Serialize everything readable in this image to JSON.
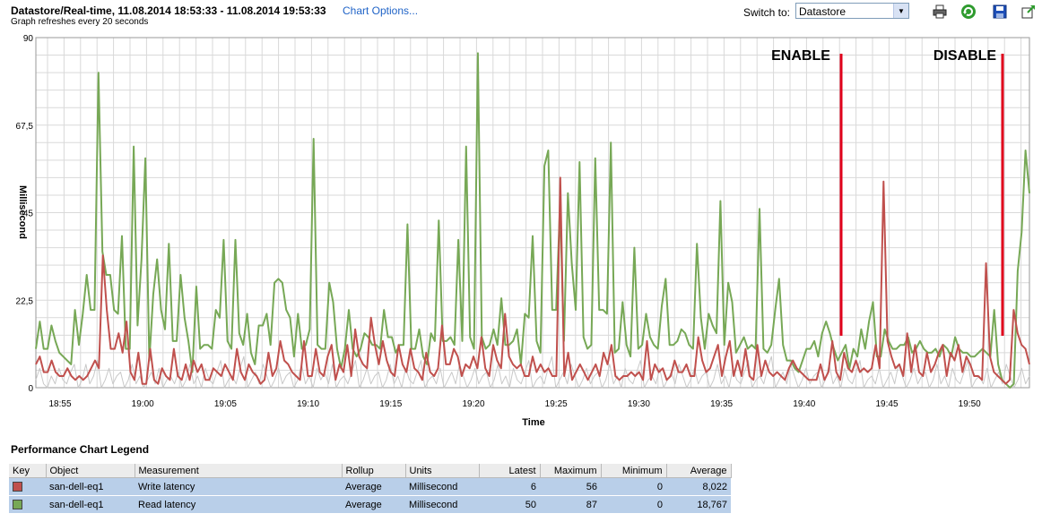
{
  "header": {
    "title": "Datastore/Real-time, 11.08.2014 18:53:33 - 11.08.2014 19:53:33",
    "chart_options_link": "Chart Options...",
    "refresh_note": "Graph refreshes every 20 seconds",
    "switch_label": "Switch to:",
    "switch_value": "Datastore"
  },
  "toolbar": {
    "icons": [
      "print-icon",
      "refresh-icon",
      "save-icon",
      "export-icon"
    ]
  },
  "colors": {
    "write_series": "#c0504d",
    "read_series": "#77a856",
    "other_series": "#c8c8c8",
    "annotation": "#e0001b"
  },
  "chart_data": {
    "type": "line",
    "ylabel": "Millisecond",
    "xlabel": "Time",
    "ylim": [
      0,
      90
    ],
    "yticks": [
      "0",
      "22,5",
      "45",
      "67,5",
      "90"
    ],
    "xticks": [
      "18:55",
      "19:00",
      "19:05",
      "19:10",
      "19:15",
      "19:20",
      "19:25",
      "19:30",
      "19:35",
      "19:40",
      "19:45",
      "19:50"
    ],
    "grid": true,
    "series": [
      {
        "name": "Read latency",
        "values": [
          10,
          17,
          10,
          10,
          16,
          12,
          9,
          8,
          7,
          6,
          20,
          11,
          19,
          29,
          20,
          20,
          81,
          35,
          29,
          29,
          20,
          19,
          39,
          10,
          10,
          62,
          16,
          33,
          59,
          7,
          24,
          33,
          20,
          15,
          37,
          12,
          12,
          29,
          18,
          12,
          4,
          26,
          10,
          11,
          11,
          10,
          20,
          18,
          38,
          12,
          10,
          38,
          14,
          11,
          19,
          9,
          6,
          16,
          16,
          19,
          11,
          27,
          28,
          27,
          20,
          18,
          8,
          19,
          10,
          11,
          15,
          64,
          11,
          10,
          10,
          27,
          22,
          10,
          5,
          10,
          20,
          10,
          8,
          10,
          14,
          13,
          11,
          11,
          10,
          20,
          13,
          13,
          9,
          11,
          11,
          42,
          10,
          10,
          15,
          8,
          6,
          14,
          12,
          43,
          12,
          12,
          13,
          11,
          38,
          12,
          62,
          13,
          10,
          86,
          13,
          10,
          11,
          15,
          11,
          23,
          11,
          11,
          12,
          15,
          6,
          19,
          18,
          39,
          12,
          9,
          57,
          61,
          20,
          20,
          47,
          12,
          50,
          32,
          20,
          58,
          13,
          10,
          11,
          59,
          20,
          20,
          19,
          63,
          9,
          10,
          22,
          11,
          8,
          36,
          10,
          11,
          19,
          13,
          11,
          10,
          21,
          28,
          11,
          11,
          12,
          15,
          14,
          11,
          10,
          37,
          18,
          10,
          19,
          16,
          14,
          48,
          11,
          27,
          22,
          9,
          11,
          13,
          10,
          11,
          10,
          46,
          10,
          9,
          11,
          20,
          28,
          11,
          7,
          7,
          5,
          4,
          7,
          10,
          10,
          12,
          8,
          14,
          17,
          14,
          10,
          7,
          9,
          11,
          5,
          10,
          8,
          15,
          10,
          17,
          22,
          8,
          8,
          15,
          12,
          10,
          10,
          11,
          11,
          13,
          9,
          10,
          12,
          10,
          9,
          9,
          10,
          8,
          11,
          10,
          8,
          13,
          10,
          9,
          9,
          8,
          8,
          9,
          10,
          9,
          8,
          20,
          6,
          2,
          1,
          0,
          1,
          30,
          40,
          61,
          50
        ]
      },
      {
        "name": "Write latency",
        "values": [
          6,
          8,
          4,
          4,
          7,
          4,
          3,
          3,
          5,
          3,
          2,
          3,
          2,
          3,
          5,
          7,
          5,
          34,
          20,
          10,
          10,
          14,
          9,
          17,
          4,
          2,
          9,
          1,
          1,
          10,
          2,
          1,
          5,
          3,
          2,
          10,
          3,
          2,
          6,
          2,
          7,
          4,
          6,
          2,
          2,
          5,
          4,
          3,
          6,
          4,
          2,
          10,
          4,
          2,
          6,
          4,
          3,
          1,
          2,
          9,
          3,
          5,
          12,
          7,
          6,
          4,
          3,
          2,
          12,
          3,
          3,
          10,
          4,
          3,
          8,
          11,
          2,
          6,
          4,
          11,
          3,
          15,
          8,
          6,
          5,
          18,
          11,
          6,
          12,
          7,
          4,
          3,
          11,
          6,
          4,
          10,
          5,
          4,
          2,
          9,
          4,
          3,
          5,
          16,
          6,
          6,
          10,
          8,
          3,
          6,
          5,
          8,
          5,
          13,
          5,
          3,
          11,
          7,
          5,
          19,
          8,
          6,
          5,
          6,
          3,
          3,
          8,
          4,
          6,
          4,
          5,
          3,
          3,
          54,
          3,
          9,
          2,
          4,
          6,
          4,
          2,
          4,
          6,
          3,
          9,
          6,
          11,
          3,
          2,
          3,
          3,
          4,
          3,
          4,
          2,
          12,
          2,
          6,
          4,
          5,
          2,
          3,
          7,
          4,
          4,
          6,
          3,
          3,
          13,
          7,
          4,
          5,
          8,
          11,
          3,
          8,
          12,
          3,
          7,
          3,
          10,
          3,
          2,
          11,
          3,
          7,
          4,
          3,
          4,
          3,
          2,
          5,
          7,
          5,
          4,
          3,
          2,
          2,
          2,
          6,
          2,
          4,
          12,
          4,
          2,
          9,
          5,
          4,
          7,
          4,
          5,
          4,
          5,
          11,
          5,
          53,
          12,
          8,
          5,
          6,
          3,
          14,
          4,
          11,
          4,
          3,
          9,
          4,
          6,
          9,
          11,
          3,
          9,
          7,
          11,
          4,
          8,
          6,
          3,
          3,
          2,
          32,
          8,
          4,
          3,
          2,
          1,
          2,
          20,
          14,
          11,
          10,
          6
        ]
      },
      {
        "name": "",
        "values": [
          2,
          5,
          1,
          0,
          3,
          1,
          5,
          2,
          1,
          4,
          6,
          0,
          2,
          6,
          1,
          3,
          7,
          0,
          2,
          5,
          1,
          3,
          4,
          0,
          2,
          6,
          1,
          3,
          0,
          2,
          4,
          1,
          5,
          0,
          2,
          3,
          1,
          4,
          0,
          2,
          6,
          1,
          3,
          0,
          5,
          2,
          1,
          4,
          7,
          0,
          2,
          3,
          1,
          5,
          8,
          0,
          2,
          4,
          1,
          6,
          3,
          0,
          2,
          5,
          1,
          3,
          4,
          0,
          2,
          6,
          1,
          3,
          0,
          5,
          2,
          4,
          1,
          6,
          0,
          2,
          3,
          1,
          4,
          7,
          0,
          2,
          5,
          1,
          3,
          4,
          0,
          2,
          6,
          1,
          3,
          0,
          5,
          2,
          1,
          4,
          7,
          0,
          2,
          3,
          1,
          5,
          0,
          2,
          4,
          1,
          6,
          3,
          0,
          2,
          5,
          1,
          3,
          4,
          0,
          2,
          6,
          1,
          3,
          0,
          5,
          2,
          1,
          4,
          7,
          0,
          2,
          3,
          1,
          5,
          8,
          0,
          2,
          4,
          1,
          6,
          3,
          0,
          2,
          5,
          1,
          3,
          4,
          0,
          2,
          6,
          1,
          3,
          0,
          5,
          2,
          1,
          4,
          7,
          0,
          2,
          3,
          1,
          5,
          0,
          2,
          4,
          1,
          6,
          3,
          0,
          2,
          5,
          1,
          3,
          4,
          0,
          2,
          6,
          1,
          3,
          0,
          5,
          2,
          1,
          4,
          7,
          0,
          2,
          3,
          1,
          5,
          8,
          0,
          2,
          4,
          1,
          6,
          3,
          0,
          2,
          5,
          1,
          3,
          4,
          0,
          2,
          6,
          1,
          3,
          0,
          5,
          2,
          1,
          4,
          7,
          0,
          2,
          3,
          1,
          5,
          0,
          2,
          4,
          1,
          6,
          3,
          0,
          2,
          5,
          1,
          3,
          4,
          0,
          2,
          6,
          1,
          3,
          0,
          5,
          2,
          1,
          4,
          7,
          0,
          2,
          3,
          1,
          5,
          0,
          2,
          4,
          1,
          6,
          3,
          0,
          2,
          5,
          1,
          3
        ]
      }
    ],
    "annotations": [
      {
        "label": "ENABLE"
      },
      {
        "label": "DISABLE"
      }
    ]
  },
  "legend": {
    "title": "Performance Chart Legend",
    "columns": [
      "Key",
      "Object",
      "Measurement",
      "Rollup",
      "Units",
      "Latest",
      "Maximum",
      "Minimum",
      "Average"
    ],
    "rows": [
      {
        "object": "san-dell-eq1",
        "measurement": "Write latency",
        "rollup": "Average",
        "units": "Millisecond",
        "latest": "6",
        "maximum": "56",
        "minimum": "0",
        "average": "8,022",
        "color": "#c0504d"
      },
      {
        "object": "san-dell-eq1",
        "measurement": "Read latency",
        "rollup": "Average",
        "units": "Millisecond",
        "latest": "50",
        "maximum": "87",
        "minimum": "0",
        "average": "18,767",
        "color": "#77a856"
      }
    ]
  }
}
